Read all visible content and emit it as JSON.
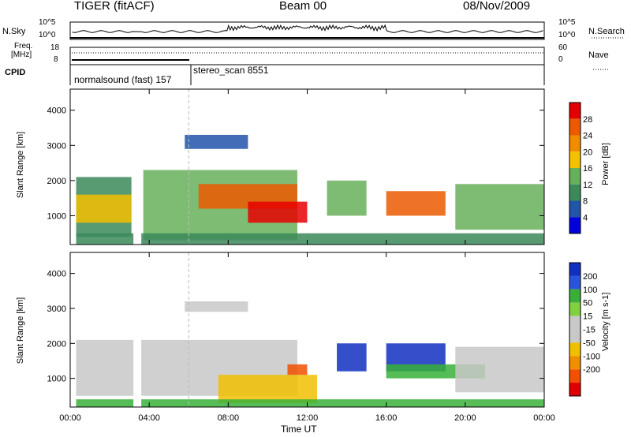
{
  "header": {
    "radar": "TIGER (fitACF)",
    "beam": "Beam 00",
    "date": "08/Nov/2009"
  },
  "top_panel": {
    "left_label": "N.Sky",
    "right_label": "N.Search",
    "left_ticks": [
      "10^5",
      "10^0"
    ],
    "right_ticks": [
      "10^5",
      "10^0"
    ],
    "freq_label_line1": "Freq.",
    "freq_label_line2": "[MHz]",
    "freq_ticks": [
      "18",
      "8"
    ],
    "nave_label": "Nave",
    "nave_ticks": [
      "60",
      "0"
    ],
    "cpid_label": "CPID",
    "cpid_1": "normalsound (fast) 157",
    "cpid_2": "stereo_scan 8551"
  },
  "colors": {
    "power_scale": [
      "#0000dd",
      "#2255aa",
      "#3b8a5a",
      "#67b05a",
      "#f5c000",
      "#f08c00",
      "#ec5a00",
      "#e60000"
    ],
    "velocity_scale": [
      "#1030c0",
      "#2a55d8",
      "#38b038",
      "#80d040",
      "#c8c8c8",
      "#c8c8c8",
      "#f0c000",
      "#f09000",
      "#f05000",
      "#e00000"
    ]
  },
  "chart_data": [
    {
      "type": "heatmap",
      "title": "Power",
      "ylabel": "Slant Range [km]",
      "ylim": [
        180,
        4600
      ],
      "yticks": [
        "1000",
        "2000",
        "3000",
        "4000"
      ],
      "xlim_hours": [
        0,
        24
      ],
      "xticks": [
        "00:00",
        "04:00",
        "08:00",
        "12:00",
        "16:00",
        "20:00",
        "00:00"
      ],
      "colorbar_label": "Power [dB]",
      "colorbar_ticks": [
        "28",
        "24",
        "20",
        "16",
        "12",
        "8",
        "4"
      ],
      "colorbar_range": [
        0,
        32
      ],
      "data_gap_hours": [
        3.2,
        3.6
      ],
      "regions": [
        {
          "x": [
            0.3,
            3.1
          ],
          "y": [
            400,
            2100
          ],
          "value": 10
        },
        {
          "x": [
            0.3,
            3.1
          ],
          "y": [
            800,
            1600
          ],
          "value": 16
        },
        {
          "x": [
            3.7,
            11.5
          ],
          "y": [
            300,
            2300
          ],
          "value": 14
        },
        {
          "x": [
            6.5,
            11.5
          ],
          "y": [
            1200,
            1900
          ],
          "value": 24
        },
        {
          "x": [
            9.0,
            12.0
          ],
          "y": [
            800,
            1400
          ],
          "value": 28
        },
        {
          "x": [
            5.8,
            9.0
          ],
          "y": [
            2900,
            3300
          ],
          "value": 6
        },
        {
          "x": [
            13.0,
            15.0
          ],
          "y": [
            1000,
            2000
          ],
          "value": 12
        },
        {
          "x": [
            16.0,
            19.0
          ],
          "y": [
            1000,
            1700
          ],
          "value": 26
        },
        {
          "x": [
            19.5,
            24.0
          ],
          "y": [
            600,
            1900
          ],
          "value": 14
        },
        {
          "x": [
            0.3,
            24.0
          ],
          "y": [
            180,
            500
          ],
          "value": 10
        }
      ]
    },
    {
      "type": "heatmap",
      "title": "Velocity",
      "ylabel": "Slant Range [km]",
      "ylim": [
        180,
        4600
      ],
      "yticks": [
        "1000",
        "2000",
        "3000",
        "4000"
      ],
      "xlim_hours": [
        0,
        24
      ],
      "xticks": [
        "00:00",
        "04:00",
        "08:00",
        "12:00",
        "16:00",
        "20:00",
        "00:00"
      ],
      "xlabel": "Time UT",
      "colorbar_label": "Velocity [m s-1]",
      "colorbar_ticks": [
        "200",
        "100",
        "50",
        "15",
        "-15",
        "-50",
        "-100",
        "-200"
      ],
      "colorbar_range": [
        -250,
        250
      ],
      "data_gap_hours": [
        3.2,
        3.6
      ],
      "regions": [
        {
          "x": [
            0.3,
            11.5
          ],
          "y": [
            500,
            2100
          ],
          "value": 0
        },
        {
          "x": [
            5.8,
            9.0
          ],
          "y": [
            2900,
            3200
          ],
          "value": 0
        },
        {
          "x": [
            7.5,
            12.5
          ],
          "y": [
            300,
            1100
          ],
          "value": -70
        },
        {
          "x": [
            11.0,
            12.0
          ],
          "y": [
            1100,
            1400
          ],
          "value": -220
        },
        {
          "x": [
            13.5,
            15.0
          ],
          "y": [
            1200,
            2000
          ],
          "value": 200
        },
        {
          "x": [
            16.0,
            19.0
          ],
          "y": [
            1200,
            2000
          ],
          "value": 220
        },
        {
          "x": [
            16.0,
            21.0
          ],
          "y": [
            1000,
            1400
          ],
          "value": 60
        },
        {
          "x": [
            19.5,
            24.0
          ],
          "y": [
            600,
            1900
          ],
          "value": 0
        },
        {
          "x": [
            0.3,
            24.0
          ],
          "y": [
            180,
            400
          ],
          "value": 70
        }
      ]
    }
  ]
}
